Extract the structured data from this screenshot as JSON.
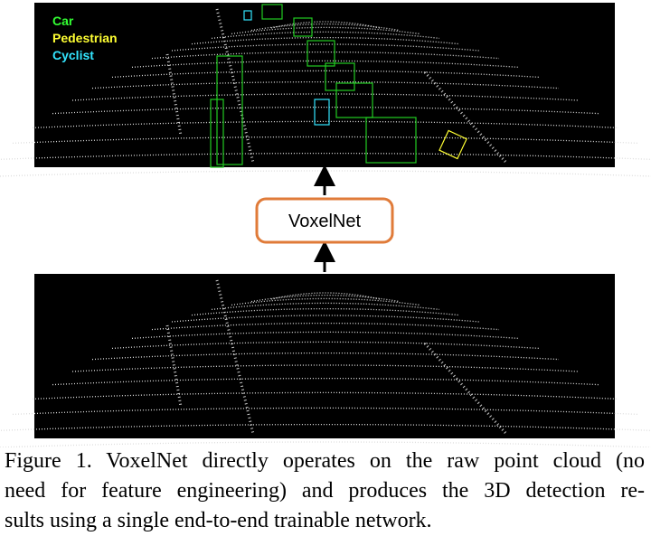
{
  "figure": {
    "legend": [
      {
        "label": "Car",
        "color": "#33ff33"
      },
      {
        "label": "Pedestrian",
        "color": "#ffff33"
      },
      {
        "label": "Cyclist",
        "color": "#33e5ff"
      }
    ],
    "model_box": "VoxelNet",
    "caption": [
      "Figure 1. VoxelNet directly operates on the raw point cloud (no",
      "need for feature engineering) and produces the 3D detection re-",
      "sults using a single end-to-end trainable network."
    ]
  }
}
